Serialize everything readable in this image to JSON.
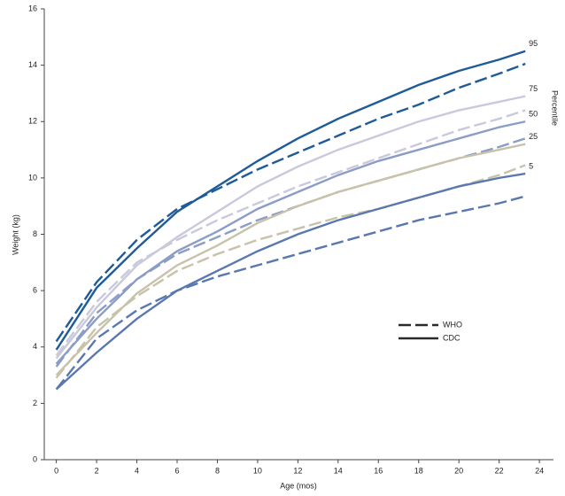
{
  "chart_data": {
    "type": "line",
    "x_label": "Age (mos)",
    "y_label": "Weight (kg)",
    "series_label_title": "Percentile",
    "x": [
      0,
      2,
      4,
      6,
      8,
      10,
      12,
      14,
      16,
      18,
      20,
      22,
      23.3
    ],
    "xlim": [
      -0.6,
      24.7
    ],
    "xticks": [
      0,
      2,
      4,
      6,
      8,
      10,
      12,
      14,
      16,
      18,
      20,
      22,
      24
    ],
    "ylim": [
      0,
      16
    ],
    "yticks": [
      0,
      2,
      4,
      6,
      8,
      10,
      12,
      14,
      16
    ],
    "legend": [
      {
        "name": "WHO",
        "dashed": true
      },
      {
        "name": "CDC",
        "dashed": false
      }
    ],
    "series": [
      {
        "label": "95",
        "color": "#1f5b99",
        "who": [
          4.2,
          6.3,
          7.8,
          8.9,
          9.6,
          10.3,
          10.9,
          11.5,
          12.1,
          12.6,
          13.2,
          13.7,
          14.05
        ],
        "cdc": [
          3.9,
          6.1,
          7.5,
          8.8,
          9.7,
          10.6,
          11.4,
          12.1,
          12.7,
          13.3,
          13.8,
          14.2,
          14.5
        ]
      },
      {
        "label": "75",
        "color": "#c9c9dc",
        "who": [
          3.7,
          5.6,
          7.0,
          7.8,
          8.5,
          9.1,
          9.7,
          10.2,
          10.7,
          11.2,
          11.7,
          12.1,
          12.4
        ],
        "cdc": [
          3.6,
          5.4,
          6.9,
          7.9,
          8.8,
          9.7,
          10.4,
          11.0,
          11.5,
          12.0,
          12.4,
          12.7,
          12.9
        ]
      },
      {
        "label": "50",
        "color": "#8b9cc6",
        "who": [
          3.3,
          5.2,
          6.4,
          7.3,
          7.9,
          8.5,
          9.0,
          9.5,
          9.9,
          10.3,
          10.7,
          11.1,
          11.4
        ],
        "cdc": [
          3.4,
          5.0,
          6.4,
          7.4,
          8.1,
          8.9,
          9.5,
          10.1,
          10.6,
          11.0,
          11.4,
          11.8,
          12.0
        ]
      },
      {
        "label": "25",
        "color": "#c8c2aa",
        "who": [
          2.9,
          4.7,
          5.8,
          6.7,
          7.3,
          7.8,
          8.2,
          8.6,
          8.9,
          9.3,
          9.7,
          10.1,
          10.45
        ],
        "cdc": [
          3.0,
          4.5,
          5.9,
          6.9,
          7.6,
          8.4,
          9.0,
          9.5,
          9.9,
          10.3,
          10.7,
          11.0,
          11.2
        ]
      },
      {
        "label": "5",
        "color": "#5a78b0",
        "who": [
          2.5,
          4.3,
          5.3,
          6.0,
          6.5,
          6.9,
          7.3,
          7.7,
          8.1,
          8.5,
          8.8,
          9.1,
          9.35
        ],
        "cdc": [
          2.5,
          3.8,
          5.0,
          6.0,
          6.7,
          7.4,
          8.0,
          8.5,
          8.9,
          9.3,
          9.7,
          10.0,
          10.15
        ]
      }
    ]
  }
}
